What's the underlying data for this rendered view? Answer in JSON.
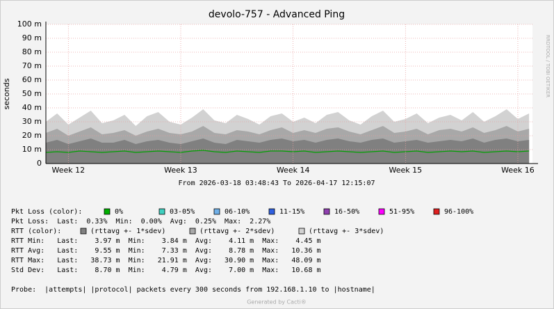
{
  "chart_data": {
    "type": "area",
    "title": "devolo-757 - Advanced Ping",
    "y_label": "seconds",
    "side_text": "RRDTOOL / TOBI OETIKER",
    "x_label": "From 2026-03-18 03:48:43 To 2026-04-17 12:15:07",
    "x": [
      11.8,
      11.9,
      12.0,
      12.1,
      12.2,
      12.3,
      12.4,
      12.5,
      12.6,
      12.7,
      12.8,
      12.9,
      13.0,
      13.1,
      13.2,
      13.3,
      13.4,
      13.5,
      13.6,
      13.7,
      13.8,
      13.9,
      14.0,
      14.1,
      14.2,
      14.3,
      14.4,
      14.5,
      14.6,
      14.7,
      14.8,
      14.9,
      15.0,
      15.1,
      15.2,
      15.3,
      15.4,
      15.5,
      15.6,
      15.7,
      15.8,
      15.9,
      16.0,
      16.1
    ],
    "xlim": [
      11.8,
      16.13
    ],
    "xticks": [
      {
        "value": 12,
        "label": "Week 12"
      },
      {
        "value": 13,
        "label": "Week 13"
      },
      {
        "value": 14,
        "label": "Week 14"
      },
      {
        "value": 15,
        "label": "Week 15"
      },
      {
        "value": 16,
        "label": "Week 16"
      }
    ],
    "ylim": [
      0,
      100
    ],
    "yticks": [
      0,
      {
        "value": 10,
        "label": "10 m"
      },
      {
        "value": 20,
        "label": "20 m"
      },
      {
        "value": 30,
        "label": "30 m"
      },
      {
        "value": 40,
        "label": "40 m"
      },
      {
        "value": 50,
        "label": "50 m"
      },
      {
        "value": 60,
        "label": "60 m"
      },
      {
        "value": 70,
        "label": "70 m"
      },
      {
        "value": 80,
        "label": "80 m"
      },
      {
        "value": 90,
        "label": "90 m"
      },
      {
        "value": 100,
        "label": "100 m"
      }
    ],
    "grid": true,
    "series": [
      {
        "name": "(rttavg +- 3*sdev)",
        "color": "#d2d2d2",
        "values": [
          30,
          36,
          28,
          33,
          38,
          29,
          31,
          35,
          27,
          34,
          37,
          30,
          28,
          33,
          39,
          31,
          29,
          35,
          32,
          28,
          34,
          36,
          30,
          33,
          29,
          35,
          37,
          31,
          28,
          34,
          38,
          30,
          32,
          36,
          29,
          33,
          35,
          31,
          37,
          30,
          34,
          39,
          32,
          36
        ]
      },
      {
        "name": "(rttavg +- 2*sdev)",
        "color": "#a8a8a8",
        "values": [
          22,
          25,
          20,
          23,
          26,
          21,
          22,
          24,
          20,
          23,
          25,
          22,
          21,
          23,
          27,
          22,
          21,
          24,
          23,
          21,
          24,
          26,
          22,
          24,
          22,
          25,
          26,
          23,
          21,
          24,
          27,
          22,
          23,
          25,
          21,
          24,
          25,
          23,
          26,
          22,
          24,
          27,
          23,
          25
        ]
      },
      {
        "name": "(rttavg +- 1*sdev)",
        "color": "#808080",
        "values": [
          15,
          17,
          14,
          16,
          18,
          15,
          15,
          17,
          14,
          16,
          17,
          15,
          14,
          16,
          18,
          15,
          14,
          17,
          16,
          15,
          17,
          18,
          16,
          17,
          15,
          17,
          18,
          16,
          15,
          17,
          18,
          15,
          16,
          17,
          15,
          16,
          17,
          16,
          18,
          15,
          17,
          18,
          16,
          17
        ]
      },
      {
        "color": "#00a000",
        "line": true,
        "values": [
          8,
          8.5,
          8,
          9,
          8.5,
          8,
          8.5,
          9,
          8,
          8.5,
          9,
          8.5,
          8,
          9,
          9.5,
          8.5,
          8,
          9,
          8.5,
          8,
          9,
          9,
          8.5,
          9,
          8,
          8.5,
          9,
          8.5,
          8,
          8.5,
          9,
          8,
          8.5,
          9,
          8,
          8.5,
          9,
          8.5,
          9,
          8,
          8.5,
          9,
          8.5,
          9
        ]
      }
    ],
    "legend": {
      "pkt_loss_label": "Pkt Loss (color):",
      "pkt_loss_items": [
        {
          "label": "0%",
          "color": "#00b000"
        },
        {
          "label": "03-05%",
          "color": "#40d0c0"
        },
        {
          "label": "06-10%",
          "color": "#70b0e8"
        },
        {
          "label": "11-15%",
          "color": "#3060e0"
        },
        {
          "label": "16-50%",
          "color": "#9040b0"
        },
        {
          "label": "51-95%",
          "color": "#ff00ff"
        },
        {
          "label": "96-100%",
          "color": "#e02020"
        }
      ],
      "rtt_label": "RTT (color):",
      "rtt_items": [
        {
          "label": "(rttavg +- 1*sdev)",
          "color": "#808080"
        },
        {
          "label": "(rttavg +- 2*sdev)",
          "color": "#a8a8a8"
        },
        {
          "label": "(rttavg +- 3*sdev)",
          "color": "#d2d2d2"
        }
      ],
      "lines": [
        "Pkt Loss:  Last:  0.33%  Min:  0.00%  Avg:  0.25%  Max:  2.27%",
        "RTT Min:   Last:    3.97 m  Min:    3.84 m  Avg:    4.11 m  Max:    4.45 m",
        "RTT Avg:   Last:    9.55 m  Min:    7.33 m  Avg:    8.78 m  Max:   10.36 m",
        "RTT Max:   Last:   38.73 m  Min:   21.91 m  Avg:   30.90 m  Max:   48.09 m",
        "Std Dev:   Last:    8.70 m  Min:    4.79 m  Avg:    7.00 m  Max:   10.68 m"
      ],
      "probe": "Probe:  |attempts| |protocol| packets every 300 seconds from 192.168.1.10 to |hostname|"
    },
    "footer": "Generated by Cacti®"
  }
}
